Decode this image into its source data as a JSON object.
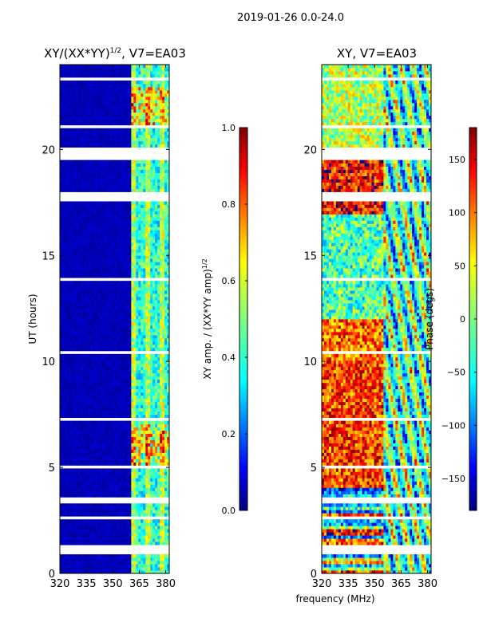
{
  "figure": {
    "suptitle": "2019-01-26 0.0-24.0",
    "xlabel": "frequency (MHz)"
  },
  "colors": {
    "jet": [
      "#00007f",
      "#0000ff",
      "#007fff",
      "#00ffff",
      "#7fff7f",
      "#ffff00",
      "#ff7f00",
      "#ff0000",
      "#7f0000"
    ],
    "flag": "#ffffff",
    "axis": "#000000"
  },
  "chart_data": [
    {
      "type": "heatmap",
      "title": "XY/(XX*YY)",
      "title_superscript": "1/2",
      "title_suffix": ", V7=EA03",
      "xlabel": "",
      "ylabel": "UT (hours)",
      "xlim": [
        320,
        382
      ],
      "ylim": [
        0,
        24
      ],
      "xticks": [
        320,
        335,
        350,
        365,
        380
      ],
      "yticks": [
        0,
        5,
        10,
        15,
        20
      ],
      "colorbar": {
        "label": "XY amp. / (XX*YY amp)",
        "label_superscript": "1/2",
        "range": [
          0.0,
          1.0
        ],
        "ticks": [
          "0.0",
          "0.2",
          "0.4",
          "0.6",
          "0.8",
          "1.0"
        ],
        "tick_values": [
          0.0,
          0.2,
          0.4,
          0.6,
          0.8,
          1.0
        ]
      },
      "description_values": {
        "band_edge_mhz": 361,
        "flagged_hours": [
          [
            0.9,
            1.15
          ],
          [
            1.2,
            1.4
          ],
          [
            2.6,
            2.75
          ],
          [
            3.3,
            3.6
          ],
          [
            4.6,
            4.7
          ],
          [
            5.0,
            5.15
          ],
          [
            7.2,
            7.3
          ],
          [
            8.5,
            8.6
          ],
          [
            10.3,
            10.5
          ],
          [
            13.8,
            14.0
          ],
          [
            17.6,
            18.0
          ],
          [
            19.5,
            20.1
          ],
          [
            21.0,
            21.1
          ],
          [
            22.6,
            22.7
          ],
          [
            23.3,
            23.35
          ]
        ]
      }
    },
    {
      "type": "heatmap",
      "title": "XY, V7=EA03",
      "xlabel": "",
      "ylabel": "",
      "xlim": [
        320,
        382
      ],
      "ylim": [
        0,
        24
      ],
      "xticks": [
        320,
        335,
        350,
        365,
        380
      ],
      "yticks": [
        0,
        5,
        10,
        15,
        20
      ],
      "colorbar": {
        "label": "Phase (degs)",
        "range": [
          -180,
          180
        ],
        "ticks": [
          "−150",
          "−100",
          "−50",
          "0",
          "50",
          "100",
          "150"
        ],
        "tick_values": [
          -150,
          -100,
          -50,
          0,
          50,
          100,
          150
        ]
      },
      "description_values": {
        "flagged_hours": [
          [
            0.9,
            1.15
          ],
          [
            1.2,
            1.4
          ],
          [
            2.6,
            2.75
          ],
          [
            3.3,
            3.6
          ],
          [
            4.6,
            4.7
          ],
          [
            5.0,
            5.15
          ],
          [
            7.2,
            7.3
          ],
          [
            8.5,
            8.6
          ],
          [
            10.3,
            10.5
          ],
          [
            13.8,
            14.0
          ],
          [
            17.6,
            18.0
          ],
          [
            19.5,
            20.1
          ],
          [
            21.0,
            21.1
          ],
          [
            22.6,
            22.7
          ],
          [
            23.3,
            23.35
          ]
        ]
      }
    }
  ]
}
